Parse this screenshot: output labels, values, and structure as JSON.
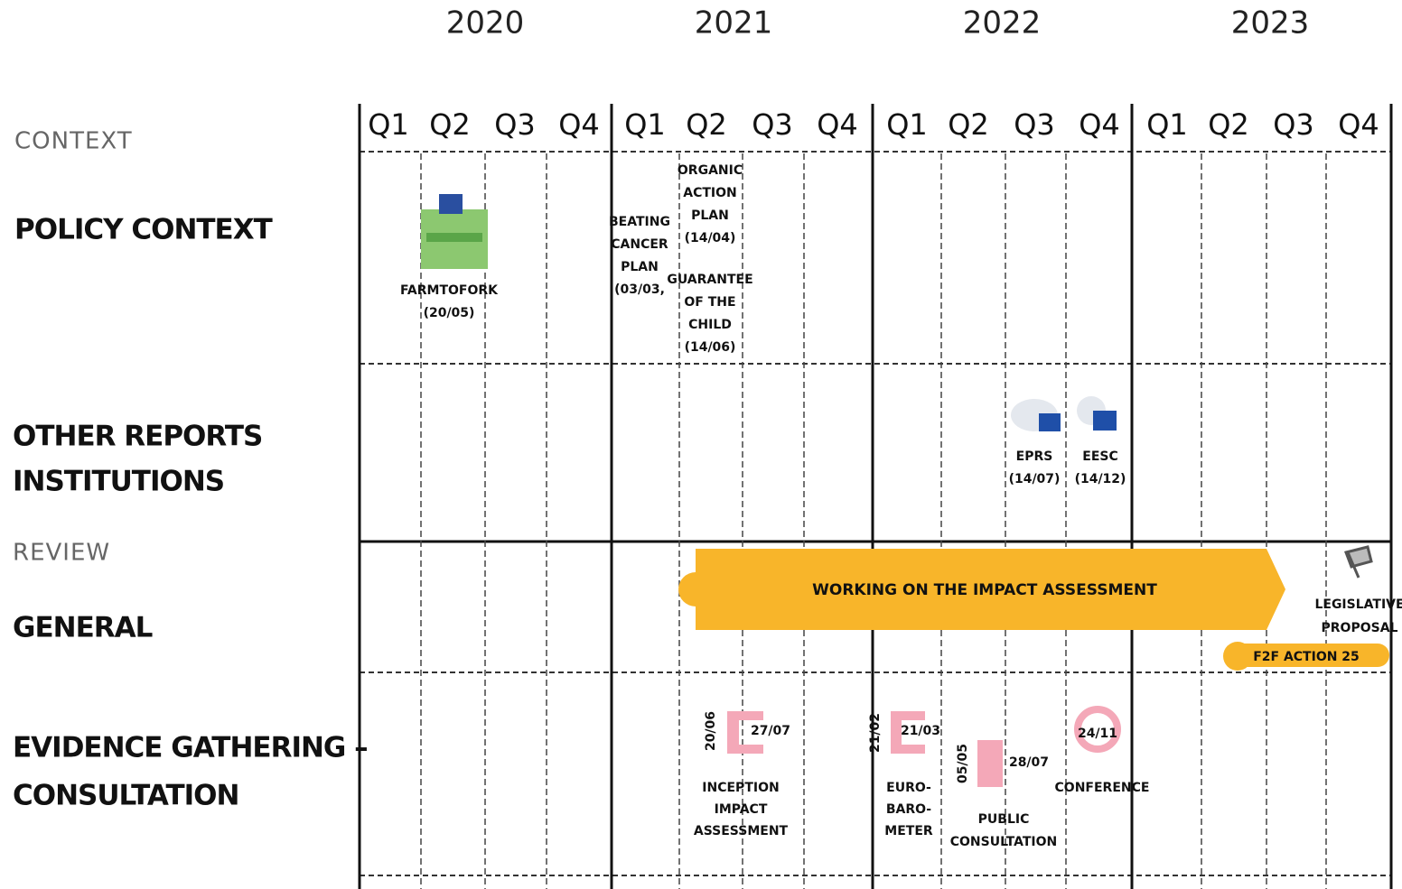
{
  "years": [
    "2020",
    "2021",
    "2022",
    "2023"
  ],
  "quarters": [
    "Q1",
    "Q2",
    "Q3",
    "Q4"
  ],
  "sections": {
    "context": "CONTEXT",
    "policy_context": "POLICY CONTEXT",
    "other_reports": [
      "OTHER REPORTS",
      "INSTITUTIONS"
    ],
    "review": "REVIEW",
    "general": "GENERAL",
    "evidence": [
      "EVIDENCE GATHERING –",
      "CONSULTATION"
    ]
  },
  "policy_events": [
    {
      "label": [
        "FARMTOFORK",
        "(20/05)"
      ]
    },
    {
      "label": [
        "BEATING",
        "CANCER",
        "PLAN",
        "(03/03,"
      ]
    },
    {
      "label": [
        "ORGANIC",
        "ACTION",
        "PLAN",
        "(14/04)"
      ]
    },
    {
      "label": [
        "GUARANTEE",
        "OF THE",
        "CHILD",
        "(14/06)"
      ]
    }
  ],
  "reports": [
    {
      "label": [
        "EPRS",
        "(14/07)"
      ]
    },
    {
      "label": [
        "EESC",
        "(14/12)"
      ]
    }
  ],
  "general": {
    "impact_assessment": "WORKING ON THE IMPACT ASSESSMENT",
    "f2f": "F2F ACTION 25",
    "legislative": [
      "LEGISLATIVE",
      "PROPOSAL"
    ]
  },
  "consultations": [
    {
      "start": "20/06",
      "end": "27/07",
      "label": [
        "INCEPTION",
        "IMPACT",
        "ASSESSMENT"
      ]
    },
    {
      "start": "21/02",
      "end": "21/03",
      "label": [
        "EURO-",
        "BARO-",
        "METER"
      ]
    },
    {
      "start": "05/05",
      "end": "28/07",
      "label": [
        "PUBLIC",
        "CONSULTATION"
      ]
    },
    {
      "end": "24/11",
      "label": [
        "CONFERENCE"
      ]
    }
  ]
}
